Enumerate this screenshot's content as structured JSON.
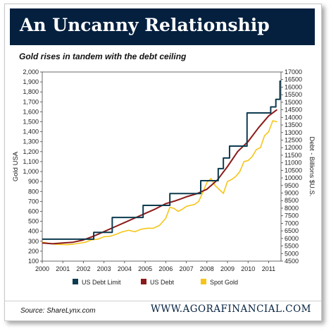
{
  "header": {
    "title": "An Uncanny Relationship",
    "subtitle": "Gold rises in tandem with the debt ceiling"
  },
  "footer": {
    "source": "Source: ShareLynx.com",
    "site": "WWW.AGORAFINANCIAL.COM"
  },
  "colors": {
    "header_bg": "#05203f",
    "debt_limit": "#0d3b4f",
    "us_debt": "#8b1a1a",
    "spot_gold": "#f5c518"
  },
  "chart_data": {
    "type": "line",
    "title": "An Uncanny Relationship",
    "subtitle": "Gold rises in tandem with the debt ceiling",
    "left_axis": {
      "label": "Gold USA",
      "ylim": [
        100,
        2000
      ],
      "ticks": [
        "100",
        "200",
        "300",
        "400",
        "500",
        "600",
        "700",
        "800",
        "900",
        "1,000",
        "1,100",
        "1,200",
        "1,300",
        "1,400",
        "1,500",
        "1,600",
        "1,700",
        "1,800",
        "1,900",
        "2,000"
      ]
    },
    "right_axis": {
      "label": "Debt - Billions $U.S.",
      "ylim": [
        4500,
        17000
      ],
      "ticks": [
        "4500",
        "5000",
        "5500",
        "6000",
        "6500",
        "7000",
        "7500",
        "8000",
        "8500",
        "9000",
        "9500",
        "10000",
        "10500",
        "11000",
        "11500",
        "12000",
        "12500",
        "13000",
        "13500",
        "14000",
        "14500",
        "15000",
        "15500",
        "16000",
        "16500",
        "17000"
      ]
    },
    "x_axis": {
      "xlim": [
        2000,
        2011.6
      ],
      "ticks": [
        "2000",
        "2001",
        "2002",
        "2003",
        "2004",
        "2005",
        "2006",
        "2007",
        "2008",
        "2009",
        "2010",
        "2011"
      ]
    },
    "grid": false,
    "legend_position": "bottom",
    "series": [
      {
        "name": "US Debt Limit",
        "axis": "right",
        "step": true,
        "x": [
          2000.0,
          2002.5,
          2003.4,
          2004.9,
          2006.2,
          2007.7,
          2008.55,
          2008.8,
          2009.1,
          2009.95,
          2011.1,
          2011.35,
          2011.55
        ],
        "values": [
          5950,
          6400,
          7384,
          8184,
          8965,
          9815,
          10615,
          11315,
          12104,
          14294,
          14694,
          15194,
          16394
        ]
      },
      {
        "name": "US Debt",
        "axis": "right",
        "x": [
          2000.0,
          2000.5,
          2001.0,
          2001.5,
          2002.0,
          2002.5,
          2003.0,
          2003.5,
          2004.0,
          2004.5,
          2005.0,
          2005.5,
          2006.0,
          2006.5,
          2007.0,
          2007.5,
          2008.0,
          2008.5,
          2009.0,
          2009.5,
          2010.0,
          2010.5,
          2011.0,
          2011.4
        ],
        "values": [
          5700,
          5650,
          5700,
          5750,
          5900,
          6150,
          6450,
          6750,
          7050,
          7350,
          7650,
          7950,
          8300,
          8500,
          8750,
          8950,
          9250,
          9850,
          10750,
          11750,
          12400,
          13300,
          14100,
          14500
        ]
      },
      {
        "name": "Spot Gold",
        "axis": "left",
        "x": [
          2000.0,
          2000.3,
          2000.6,
          2000.9,
          2001.2,
          2001.5,
          2001.8,
          2002.1,
          2002.4,
          2002.7,
          2003.0,
          2003.3,
          2003.6,
          2003.9,
          2004.2,
          2004.5,
          2004.8,
          2005.1,
          2005.4,
          2005.7,
          2006.0,
          2006.2,
          2006.4,
          2006.6,
          2006.8,
          2007.0,
          2007.2,
          2007.4,
          2007.6,
          2007.8,
          2008.0,
          2008.2,
          2008.4,
          2008.6,
          2008.8,
          2009.0,
          2009.2,
          2009.4,
          2009.6,
          2009.8,
          2010.0,
          2010.2,
          2010.4,
          2010.6,
          2010.8,
          2011.0,
          2011.2,
          2011.4
        ],
        "values": [
          290,
          280,
          270,
          268,
          265,
          270,
          280,
          290,
          315,
          320,
          345,
          350,
          370,
          395,
          410,
          395,
          420,
          430,
          430,
          460,
          530,
          640,
          630,
          600,
          620,
          650,
          660,
          670,
          700,
          790,
          890,
          930,
          860,
          820,
          780,
          900,
          920,
          950,
          1000,
          1100,
          1110,
          1150,
          1220,
          1240,
          1360,
          1400,
          1510,
          1500
        ]
      }
    ]
  }
}
